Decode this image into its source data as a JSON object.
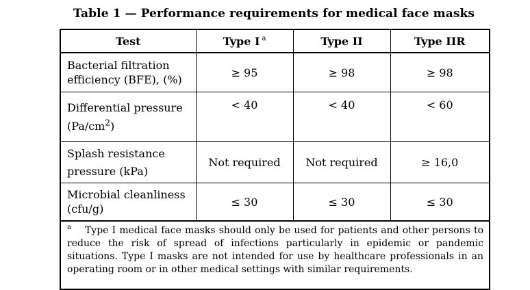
{
  "title": "Table 1 — Performance requirements for medical face masks",
  "headers": {
    "test": "Test",
    "type1": "Type I",
    "type1_mark": "a",
    "type2": "Type II",
    "type2r": "Type IIR"
  },
  "rows": [
    {
      "test_line1": "Bacterial filtration",
      "test_line2": "efficiency (BFE), (%)",
      "type1": "≥ 95",
      "type2": "≥ 98",
      "type2r": "≥ 98"
    },
    {
      "test_line1": "Differential pressure",
      "test_line2": "(Pa/cm",
      "test_line2_sup": "2",
      "test_line2_end": ")",
      "type1": "< 40",
      "type2": "< 40",
      "type2r": "< 60"
    },
    {
      "test_line1": "Splash resistance",
      "test_line2": "pressure (kPa)",
      "type1": "Not required",
      "type2": "Not required",
      "type2r": "≥ 16,0"
    },
    {
      "test_line1": "Microbial cleanliness",
      "test_line2": "(cfu/g)",
      "type1": "≤ 30",
      "type2": "≤ 30",
      "type2r": "≤ 30"
    }
  ],
  "footnote": {
    "mark": "a",
    "text": "Type I medical face masks should only be used for patients and other persons to reduce the risk of spread of infections particularly in epidemic or pandemic situations. Type I masks are not intended for use by healthcare professionals in an operating room or in other medical settings with similar requirements."
  }
}
